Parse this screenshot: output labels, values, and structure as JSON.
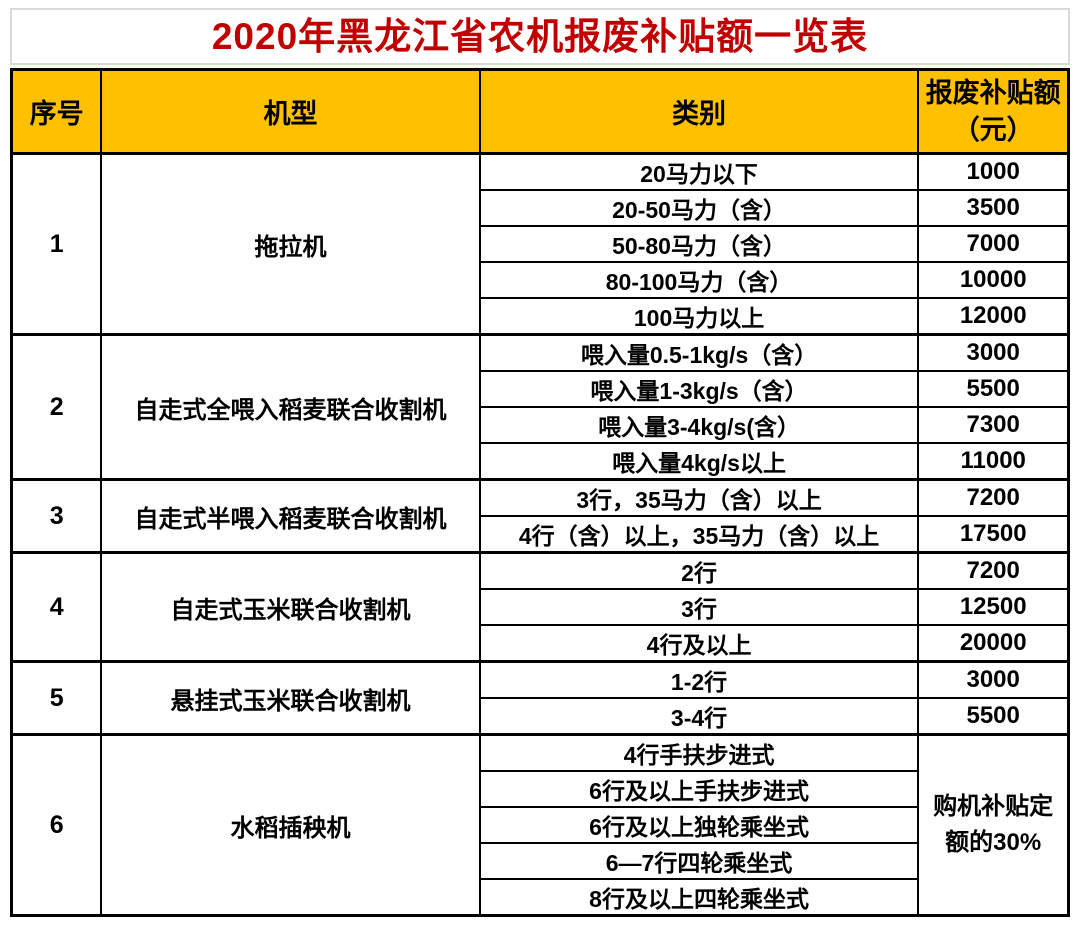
{
  "title": "2020年黑龙江省农机报废补贴额一览表",
  "table": {
    "headers": [
      "序号",
      "机型",
      "类别"
    ],
    "amount_header": {
      "line1": "报废补贴额",
      "line2": "（元）"
    },
    "groups": [
      {
        "no": "1",
        "machine": "拖拉机",
        "rows": [
          {
            "category": "20马力以下",
            "amount": "1000"
          },
          {
            "category": "20-50马力（含）",
            "amount": "3500"
          },
          {
            "category": "50-80马力（含）",
            "amount": "7000"
          },
          {
            "category": "80-100马力（含）",
            "amount": "10000"
          },
          {
            "category": "100马力以上",
            "amount": "12000"
          }
        ]
      },
      {
        "no": "2",
        "machine": "自走式全喂入稻麦联合收割机",
        "rows": [
          {
            "category": "喂入量0.5-1kg/s（含）",
            "amount": "3000"
          },
          {
            "category": "喂入量1-3kg/s（含）",
            "amount": "5500"
          },
          {
            "category": "喂入量3-4kg/s(含）",
            "amount": "7300"
          },
          {
            "category": "喂入量4kg/s以上",
            "amount": "11000"
          }
        ]
      },
      {
        "no": "3",
        "machine": "自走式半喂入稻麦联合收割机",
        "rows": [
          {
            "category": "3行，35马力（含）以上",
            "amount": "7200"
          },
          {
            "category": "4行（含）以上，35马力（含）以上",
            "amount": "17500"
          }
        ]
      },
      {
        "no": "4",
        "machine": "自走式玉米联合收割机",
        "rows": [
          {
            "category": "2行",
            "amount": "7200"
          },
          {
            "category": "3行",
            "amount": "12500"
          },
          {
            "category": "4行及以上",
            "amount": "20000"
          }
        ]
      },
      {
        "no": "5",
        "machine": "悬挂式玉米联合收割机",
        "rows": [
          {
            "category": "1-2行",
            "amount": "3000"
          },
          {
            "category": "3-4行",
            "amount": "5500"
          }
        ]
      },
      {
        "no": "6",
        "machine": "水稻插秧机",
        "merged_amount": "购机补贴定额的30%",
        "rows": [
          {
            "category": "4行手扶步进式"
          },
          {
            "category": "6行及以上手扶步进式"
          },
          {
            "category": "6行及以上独轮乘坐式"
          },
          {
            "category": "6—7行四轮乘坐式"
          },
          {
            "category": "8行及以上四轮乘坐式"
          }
        ]
      }
    ]
  },
  "colors": {
    "title_red": "#c00000",
    "header_orange": "#ffc000",
    "border_black": "#000000",
    "title_box_border_gray": "#d9d9d9"
  }
}
